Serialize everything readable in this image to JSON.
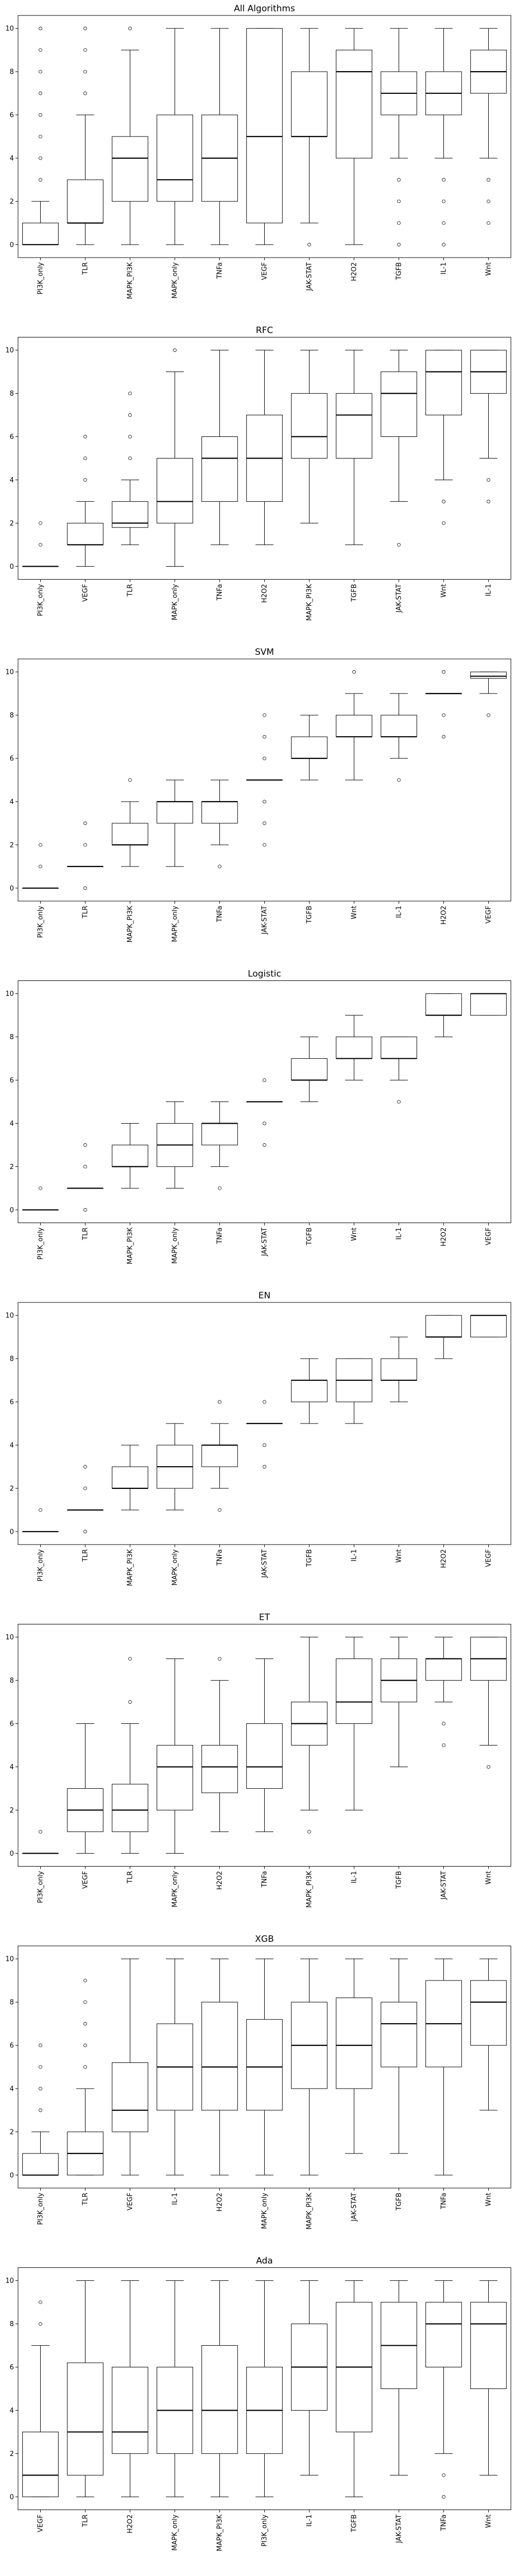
{
  "figure": {
    "panel_count": 8
  },
  "chart_data": [
    {
      "type": "box",
      "title": "All Algorithms",
      "xlabel": "",
      "ylabel": "",
      "ylim": [
        -0.6,
        10.6
      ],
      "yticks": [
        0,
        2,
        4,
        6,
        8,
        10
      ],
      "grid": false,
      "legend": "none",
      "categories": [
        "PI3K_only",
        "TLR",
        "MAPK_PI3K",
        "MAPK_only",
        "TNFa",
        "VEGF",
        "JAK-STAT",
        "H2O2",
        "TGFB",
        "IL-1",
        "Wnt"
      ],
      "boxes": [
        {
          "whislo": 0,
          "q1": 0,
          "med": 0,
          "q3": 1,
          "whishi": 2,
          "fliers": [
            3,
            4,
            5,
            6,
            7,
            8,
            9,
            10
          ]
        },
        {
          "whislo": 0,
          "q1": 1,
          "med": 1,
          "q3": 3,
          "whishi": 6,
          "fliers": [
            7,
            8,
            9,
            10
          ]
        },
        {
          "whislo": 0,
          "q1": 2,
          "med": 4,
          "q3": 5,
          "whishi": 9,
          "fliers": [
            10
          ]
        },
        {
          "whislo": 0,
          "q1": 2,
          "med": 3,
          "q3": 6,
          "whishi": 10,
          "fliers": []
        },
        {
          "whislo": 0,
          "q1": 2,
          "med": 4,
          "q3": 6,
          "whishi": 10,
          "fliers": []
        },
        {
          "whislo": 0,
          "q1": 1,
          "med": 5,
          "q3": 10,
          "whishi": 10,
          "fliers": []
        },
        {
          "whislo": 1,
          "q1": 5,
          "med": 5,
          "q3": 8,
          "whishi": 10,
          "fliers": [
            0
          ]
        },
        {
          "whislo": 0,
          "q1": 4,
          "med": 8,
          "q3": 9,
          "whishi": 10,
          "fliers": []
        },
        {
          "whislo": 4,
          "q1": 6,
          "med": 7,
          "q3": 8,
          "whishi": 10,
          "fliers": [
            0,
            1,
            2,
            3
          ]
        },
        {
          "whislo": 4,
          "q1": 6,
          "med": 7,
          "q3": 8,
          "whishi": 10,
          "fliers": [
            0,
            1,
            2,
            3
          ]
        },
        {
          "whislo": 4,
          "q1": 7,
          "med": 8,
          "q3": 9,
          "whishi": 10,
          "fliers": [
            1,
            2,
            3
          ]
        }
      ]
    },
    {
      "type": "box",
      "title": "RFC",
      "xlabel": "",
      "ylabel": "",
      "ylim": [
        -0.6,
        10.6
      ],
      "yticks": [
        0,
        2,
        4,
        6,
        8,
        10
      ],
      "grid": false,
      "legend": "none",
      "categories": [
        "PI3K_only",
        "VEGF",
        "TLR",
        "MAPK_only",
        "TNFa",
        "H2O2",
        "MAPK_PI3K",
        "TGFB",
        "JAK-STAT",
        "Wnt",
        "IL-1"
      ],
      "boxes": [
        {
          "whislo": 0,
          "q1": 0,
          "med": 0,
          "q3": 0,
          "whishi": 0,
          "fliers": [
            1,
            2
          ]
        },
        {
          "whislo": 0,
          "q1": 1,
          "med": 1,
          "q3": 2,
          "whishi": 3,
          "fliers": [
            4,
            5,
            6
          ]
        },
        {
          "whislo": 1,
          "q1": 1.8,
          "med": 2,
          "q3": 3,
          "whishi": 4,
          "fliers": [
            5,
            6,
            7,
            8
          ]
        },
        {
          "whislo": 0,
          "q1": 2,
          "med": 3,
          "q3": 5,
          "whishi": 9,
          "fliers": [
            10
          ]
        },
        {
          "whislo": 1,
          "q1": 3,
          "med": 5,
          "q3": 6,
          "whishi": 10,
          "fliers": []
        },
        {
          "whislo": 1,
          "q1": 3,
          "med": 5,
          "q3": 7,
          "whishi": 10,
          "fliers": []
        },
        {
          "whislo": 2,
          "q1": 5,
          "med": 6,
          "q3": 8,
          "whishi": 10,
          "fliers": []
        },
        {
          "whislo": 1,
          "q1": 5,
          "med": 7,
          "q3": 8,
          "whishi": 10,
          "fliers": []
        },
        {
          "whislo": 3,
          "q1": 6,
          "med": 8,
          "q3": 9,
          "whishi": 10,
          "fliers": [
            1
          ]
        },
        {
          "whislo": 4,
          "q1": 7,
          "med": 9,
          "q3": 10,
          "whishi": 10,
          "fliers": [
            2,
            3
          ]
        },
        {
          "whislo": 5,
          "q1": 8,
          "med": 9,
          "q3": 10,
          "whishi": 10,
          "fliers": [
            3,
            4
          ]
        }
      ]
    },
    {
      "type": "box",
      "title": "SVM",
      "xlabel": "",
      "ylabel": "",
      "ylim": [
        -0.6,
        10.6
      ],
      "yticks": [
        0,
        2,
        4,
        6,
        8,
        10
      ],
      "grid": false,
      "legend": "none",
      "categories": [
        "PI3K_only",
        "TLR",
        "MAPK_PI3K",
        "MAPK_only",
        "TNFa",
        "JAK-STAT",
        "TGFB",
        "Wnt",
        "IL-1",
        "H2O2",
        "VEGF"
      ],
      "boxes": [
        {
          "whislo": 0,
          "q1": 0,
          "med": 0,
          "q3": 0,
          "whishi": 0,
          "fliers": [
            1,
            2
          ]
        },
        {
          "whislo": 1,
          "q1": 1,
          "med": 1,
          "q3": 1,
          "whishi": 1,
          "fliers": [
            0,
            2,
            3
          ]
        },
        {
          "whislo": 1,
          "q1": 2,
          "med": 2,
          "q3": 3,
          "whishi": 4,
          "fliers": [
            5
          ]
        },
        {
          "whislo": 1,
          "q1": 3,
          "med": 4,
          "q3": 4,
          "whishi": 5,
          "fliers": []
        },
        {
          "whislo": 2,
          "q1": 3,
          "med": 4,
          "q3": 4,
          "whishi": 5,
          "fliers": [
            1
          ]
        },
        {
          "whislo": 5,
          "q1": 5,
          "med": 5,
          "q3": 5,
          "whishi": 5,
          "fliers": [
            2,
            3,
            4,
            6,
            7,
            8
          ]
        },
        {
          "whislo": 5,
          "q1": 6,
          "med": 6,
          "q3": 7,
          "whishi": 8,
          "fliers": []
        },
        {
          "whislo": 5,
          "q1": 7,
          "med": 7,
          "q3": 8,
          "whishi": 9,
          "fliers": [
            10
          ]
        },
        {
          "whislo": 6,
          "q1": 7,
          "med": 7,
          "q3": 8,
          "whishi": 9,
          "fliers": [
            5
          ]
        },
        {
          "whislo": 9,
          "q1": 9,
          "med": 9,
          "q3": 9,
          "whishi": 9,
          "fliers": [
            7,
            8,
            10
          ]
        },
        {
          "whislo": 9,
          "q1": 9.7,
          "med": 9.8,
          "q3": 10,
          "whishi": 10,
          "fliers": [
            8
          ]
        }
      ]
    },
    {
      "type": "box",
      "title": "Logistic",
      "xlabel": "",
      "ylabel": "",
      "ylim": [
        -0.6,
        10.6
      ],
      "yticks": [
        0,
        2,
        4,
        6,
        8,
        10
      ],
      "grid": false,
      "legend": "none",
      "categories": [
        "PI3K_only",
        "TLR",
        "MAPK_PI3K",
        "MAPK_only",
        "TNFa",
        "JAK-STAT",
        "TGFB",
        "Wnt",
        "IL-1",
        "H2O2",
        "VEGF"
      ],
      "boxes": [
        {
          "whislo": 0,
          "q1": 0,
          "med": 0,
          "q3": 0,
          "whishi": 0,
          "fliers": [
            1
          ]
        },
        {
          "whislo": 1,
          "q1": 1,
          "med": 1,
          "q3": 1,
          "whishi": 1,
          "fliers": [
            0,
            2,
            3
          ]
        },
        {
          "whislo": 1,
          "q1": 2,
          "med": 2,
          "q3": 3,
          "whishi": 4,
          "fliers": []
        },
        {
          "whislo": 1,
          "q1": 2,
          "med": 3,
          "q3": 4,
          "whishi": 5,
          "fliers": []
        },
        {
          "whislo": 2,
          "q1": 3,
          "med": 4,
          "q3": 4,
          "whishi": 5,
          "fliers": [
            1
          ]
        },
        {
          "whislo": 5,
          "q1": 5,
          "med": 5,
          "q3": 5,
          "whishi": 5,
          "fliers": [
            3,
            4,
            6
          ]
        },
        {
          "whislo": 5,
          "q1": 6,
          "med": 6,
          "q3": 7,
          "whishi": 8,
          "fliers": []
        },
        {
          "whislo": 6,
          "q1": 7,
          "med": 7,
          "q3": 8,
          "whishi": 9,
          "fliers": []
        },
        {
          "whislo": 6,
          "q1": 7,
          "med": 7,
          "q3": 8,
          "whishi": 8,
          "fliers": [
            5
          ]
        },
        {
          "whislo": 8,
          "q1": 9,
          "med": 9,
          "q3": 10,
          "whishi": 10,
          "fliers": []
        },
        {
          "whislo": 9,
          "q1": 9,
          "med": 10,
          "q3": 10,
          "whishi": 10,
          "fliers": []
        }
      ]
    },
    {
      "type": "box",
      "title": "EN",
      "xlabel": "",
      "ylabel": "",
      "ylim": [
        -0.6,
        10.6
      ],
      "yticks": [
        0,
        2,
        4,
        6,
        8,
        10
      ],
      "grid": false,
      "legend": "none",
      "categories": [
        "PI3K_only",
        "TLR",
        "MAPK_PI3K",
        "MAPK_only",
        "TNFa",
        "JAK-STAT",
        "TGFB",
        "IL-1",
        "Wnt",
        "H2O2",
        "VEGF"
      ],
      "boxes": [
        {
          "whislo": 0,
          "q1": 0,
          "med": 0,
          "q3": 0,
          "whishi": 0,
          "fliers": [
            1
          ]
        },
        {
          "whislo": 1,
          "q1": 1,
          "med": 1,
          "q3": 1,
          "whishi": 1,
          "fliers": [
            0,
            2,
            3
          ]
        },
        {
          "whislo": 1,
          "q1": 2,
          "med": 2,
          "q3": 3,
          "whishi": 4,
          "fliers": []
        },
        {
          "whislo": 1,
          "q1": 2,
          "med": 3,
          "q3": 4,
          "whishi": 5,
          "fliers": []
        },
        {
          "whislo": 2,
          "q1": 3,
          "med": 4,
          "q3": 4,
          "whishi": 5,
          "fliers": [
            1,
            6
          ]
        },
        {
          "whislo": 5,
          "q1": 5,
          "med": 5,
          "q3": 5,
          "whishi": 5,
          "fliers": [
            3,
            4,
            6
          ]
        },
        {
          "whislo": 5,
          "q1": 6,
          "med": 7,
          "q3": 7,
          "whishi": 8,
          "fliers": []
        },
        {
          "whislo": 5,
          "q1": 6,
          "med": 7,
          "q3": 8,
          "whishi": 8,
          "fliers": []
        },
        {
          "whislo": 6,
          "q1": 7,
          "med": 7,
          "q3": 8,
          "whishi": 9,
          "fliers": []
        },
        {
          "whislo": 8,
          "q1": 9,
          "med": 9,
          "q3": 10,
          "whishi": 10,
          "fliers": []
        },
        {
          "whislo": 9,
          "q1": 9,
          "med": 10,
          "q3": 10,
          "whishi": 10,
          "fliers": []
        }
      ]
    },
    {
      "type": "box",
      "title": "ET",
      "xlabel": "",
      "ylabel": "",
      "ylim": [
        -0.6,
        10.6
      ],
      "yticks": [
        0,
        2,
        4,
        6,
        8,
        10
      ],
      "grid": false,
      "legend": "none",
      "categories": [
        "PI3K_only",
        "VEGF",
        "TLR",
        "MAPK_only",
        "H2O2",
        "TNFa",
        "MAPK_PI3K",
        "IL-1",
        "TGFB",
        "JAK-STAT",
        "Wnt"
      ],
      "boxes": [
        {
          "whislo": 0,
          "q1": 0,
          "med": 0,
          "q3": 0,
          "whishi": 0,
          "fliers": [
            1
          ]
        },
        {
          "whislo": 0,
          "q1": 1,
          "med": 2,
          "q3": 3,
          "whishi": 6,
          "fliers": []
        },
        {
          "whislo": 0,
          "q1": 1,
          "med": 2,
          "q3": 3.2,
          "whishi": 6,
          "fliers": [
            7,
            9
          ]
        },
        {
          "whislo": 0,
          "q1": 2,
          "med": 4,
          "q3": 5,
          "whishi": 9,
          "fliers": []
        },
        {
          "whislo": 1,
          "q1": 2.8,
          "med": 4,
          "q3": 5,
          "whishi": 8,
          "fliers": [
            9
          ]
        },
        {
          "whislo": 1,
          "q1": 3,
          "med": 4,
          "q3": 6,
          "whishi": 9,
          "fliers": []
        },
        {
          "whislo": 2,
          "q1": 5,
          "med": 6,
          "q3": 7,
          "whishi": 10,
          "fliers": [
            1
          ]
        },
        {
          "whislo": 2,
          "q1": 6,
          "med": 7,
          "q3": 9,
          "whishi": 10,
          "fliers": []
        },
        {
          "whislo": 4,
          "q1": 7,
          "med": 8,
          "q3": 9,
          "whishi": 10,
          "fliers": []
        },
        {
          "whislo": 7,
          "q1": 8,
          "med": 9,
          "q3": 9,
          "whishi": 10,
          "fliers": [
            5,
            6
          ]
        },
        {
          "whislo": 5,
          "q1": 8,
          "med": 9,
          "q3": 10,
          "whishi": 10,
          "fliers": [
            4
          ]
        }
      ]
    },
    {
      "type": "box",
      "title": "XGB",
      "xlabel": "",
      "ylabel": "",
      "ylim": [
        -0.6,
        10.6
      ],
      "yticks": [
        0,
        2,
        4,
        6,
        8,
        10
      ],
      "grid": false,
      "legend": "none",
      "categories": [
        "PI3K_only",
        "TLR",
        "VEGF",
        "IL-1",
        "H2O2",
        "MAPK_only",
        "MAPK_PI3K",
        "JAK-STAT",
        "TGFB",
        "TNFa",
        "Wnt"
      ],
      "boxes": [
        {
          "whislo": 0,
          "q1": 0,
          "med": 0,
          "q3": 1,
          "whishi": 2,
          "fliers": [
            3,
            4,
            5,
            6
          ]
        },
        {
          "whislo": 0,
          "q1": 0,
          "med": 1,
          "q3": 2,
          "whishi": 4,
          "fliers": [
            5,
            6,
            7,
            8,
            9
          ]
        },
        {
          "whislo": 0,
          "q1": 2,
          "med": 3,
          "q3": 5.2,
          "whishi": 10,
          "fliers": []
        },
        {
          "whislo": 0,
          "q1": 3,
          "med": 5,
          "q3": 7,
          "whishi": 10,
          "fliers": []
        },
        {
          "whislo": 0,
          "q1": 3,
          "med": 5,
          "q3": 8,
          "whishi": 10,
          "fliers": []
        },
        {
          "whislo": 0,
          "q1": 3,
          "med": 5,
          "q3": 7.2,
          "whishi": 10,
          "fliers": []
        },
        {
          "whislo": 0,
          "q1": 4,
          "med": 6,
          "q3": 8,
          "whishi": 10,
          "fliers": []
        },
        {
          "whislo": 1,
          "q1": 4,
          "med": 6,
          "q3": 8.2,
          "whishi": 10,
          "fliers": []
        },
        {
          "whislo": 1,
          "q1": 5,
          "med": 7,
          "q3": 8,
          "whishi": 10,
          "fliers": []
        },
        {
          "whislo": 0,
          "q1": 5,
          "med": 7,
          "q3": 9,
          "whishi": 10,
          "fliers": []
        },
        {
          "whislo": 3,
          "q1": 6,
          "med": 8,
          "q3": 9,
          "whishi": 10,
          "fliers": []
        }
      ]
    },
    {
      "type": "box",
      "title": "Ada",
      "xlabel": "",
      "ylabel": "",
      "ylim": [
        -0.6,
        10.6
      ],
      "yticks": [
        0,
        2,
        4,
        6,
        8,
        10
      ],
      "grid": false,
      "legend": "none",
      "categories": [
        "VEGF",
        "TLR",
        "H2O2",
        "MAPK_only",
        "MAPK_PI3K",
        "PI3K_only",
        "IL-1",
        "TGFB",
        "JAK-STAT",
        "TNFa",
        "Wnt"
      ],
      "boxes": [
        {
          "whislo": 0,
          "q1": 0,
          "med": 1,
          "q3": 3,
          "whishi": 7,
          "fliers": [
            8,
            9
          ]
        },
        {
          "whislo": 0,
          "q1": 1,
          "med": 3,
          "q3": 6.2,
          "whishi": 10,
          "fliers": []
        },
        {
          "whislo": 0,
          "q1": 2,
          "med": 3,
          "q3": 6,
          "whishi": 10,
          "fliers": []
        },
        {
          "whislo": 0,
          "q1": 2,
          "med": 4,
          "q3": 6,
          "whishi": 10,
          "fliers": []
        },
        {
          "whislo": 0,
          "q1": 2,
          "med": 4,
          "q3": 7,
          "whishi": 10,
          "fliers": []
        },
        {
          "whislo": 0,
          "q1": 2,
          "med": 4,
          "q3": 6,
          "whishi": 10,
          "fliers": []
        },
        {
          "whislo": 1,
          "q1": 4,
          "med": 6,
          "q3": 8,
          "whishi": 10,
          "fliers": []
        },
        {
          "whislo": 0,
          "q1": 3,
          "med": 6,
          "q3": 9,
          "whishi": 10,
          "fliers": []
        },
        {
          "whislo": 1,
          "q1": 5,
          "med": 7,
          "q3": 9,
          "whishi": 10,
          "fliers": []
        },
        {
          "whislo": 2,
          "q1": 6,
          "med": 8,
          "q3": 9,
          "whishi": 10,
          "fliers": [
            0,
            1
          ]
        },
        {
          "whislo": 1,
          "q1": 5,
          "med": 8,
          "q3": 9,
          "whishi": 10,
          "fliers": []
        }
      ]
    }
  ]
}
